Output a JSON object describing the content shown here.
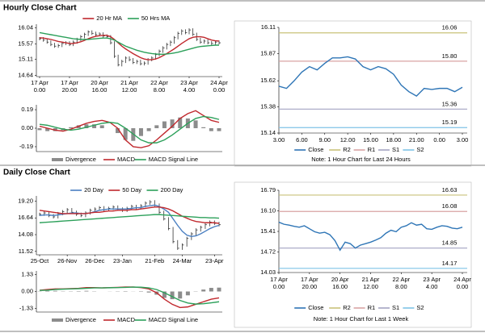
{
  "sections": [
    {
      "title": "Hourly Close Chart"
    },
    {
      "title": "Daily Close Chart"
    }
  ],
  "chart_data": [
    {
      "type": "price",
      "color": "#333333",
      "categories": [
        "17 Apr\n0.00",
        null,
        null,
        null,
        null,
        null,
        null,
        null,
        "17 Apr\n20.00",
        null,
        null,
        null,
        null,
        null,
        null,
        null,
        "20 Apr\n16.00",
        null,
        null,
        null,
        null,
        null,
        null,
        null,
        "21 Apr\n12.00",
        null,
        null,
        null,
        null,
        null,
        null,
        null,
        "22 Apr\n8.00",
        null,
        null,
        null,
        null,
        null,
        null,
        null,
        "23 Apr\n4.00",
        null,
        null,
        null,
        null,
        null,
        null,
        null,
        "24 Apr\n0.00"
      ],
      "values": [
        15.72,
        15.68,
        15.62,
        15.55,
        15.5,
        15.52,
        15.58,
        15.6,
        15.55,
        15.62,
        15.7,
        15.78,
        15.85,
        15.92,
        15.88,
        15.84,
        15.86,
        15.8,
        15.78,
        15.6,
        15.2,
        14.95,
        15.05,
        15.15,
        15.1,
        15.02,
        15.05,
        14.98,
        15.0,
        15.1,
        15.15,
        15.25,
        15.35,
        15.45,
        15.55,
        15.62,
        15.75,
        15.88,
        15.95,
        15.9,
        15.98,
        15.85,
        15.7,
        15.62,
        15.65,
        15.6,
        15.58,
        15.62,
        15.6
      ],
      "series": [
        {
          "name": "20 Hr MA",
          "color": "#c0282d",
          "values": [
            15.75,
            15.74,
            15.72,
            15.7,
            15.67,
            15.64,
            15.62,
            15.6,
            15.58,
            15.58,
            15.6,
            15.63,
            15.67,
            15.72,
            15.76,
            15.79,
            15.81,
            15.82,
            15.82,
            15.78,
            15.7,
            15.6,
            15.5,
            15.42,
            15.35,
            15.28,
            15.22,
            15.16,
            15.12,
            15.1,
            15.1,
            15.12,
            15.16,
            15.22,
            15.28,
            15.35,
            15.42,
            15.5,
            15.58,
            15.65,
            15.72,
            15.76,
            15.78,
            15.78,
            15.76,
            15.72,
            15.68,
            15.66,
            15.65
          ]
        },
        {
          "name": "50 Hrs MA",
          "color": "#2ca05a",
          "values": [
            15.9,
            15.88,
            15.86,
            15.84,
            15.82,
            15.8,
            15.78,
            15.76,
            15.74,
            15.72,
            15.71,
            15.7,
            15.7,
            15.7,
            15.71,
            15.72,
            15.73,
            15.74,
            15.74,
            15.72,
            15.68,
            15.62,
            15.56,
            15.5,
            15.46,
            15.42,
            15.38,
            15.35,
            15.32,
            15.3,
            15.28,
            15.27,
            15.26,
            15.26,
            15.27,
            15.28,
            15.3,
            15.32,
            15.35,
            15.38,
            15.41,
            15.44,
            15.47,
            15.49,
            15.5,
            15.51,
            15.52,
            15.53,
            15.53
          ]
        }
      ],
      "ylim": [
        14.6,
        16.15
      ],
      "yticks": [
        16.04,
        15.57,
        15.11,
        14.64
      ]
    },
    {
      "type": "macd",
      "series": [
        {
          "name": "Divergence",
          "kind": "bar",
          "color": "#8c8c8c",
          "values": [
            -0.02,
            -0.03,
            -0.03,
            -0.02,
            0.01,
            0.03,
            0.04,
            0.04,
            0.03,
            0.0,
            -0.05,
            -0.12,
            -0.13,
            -0.08,
            -0.03,
            0.03,
            0.07,
            0.09,
            0.11,
            0.1,
            0.08,
            0.01,
            -0.03,
            -0.03
          ]
        },
        {
          "name": "MACD",
          "kind": "line",
          "color": "#c0282d",
          "values": [
            0.02,
            0.0,
            -0.02,
            -0.03,
            -0.01,
            0.02,
            0.05,
            0.07,
            0.08,
            0.06,
            0.0,
            -0.12,
            -0.19,
            -0.2,
            -0.18,
            -0.12,
            -0.05,
            0.02,
            0.1,
            0.15,
            0.18,
            0.13,
            0.08,
            0.06
          ]
        },
        {
          "name": "MACD Signal Line",
          "kind": "line",
          "color": "#2ca05a",
          "values": [
            0.04,
            0.03,
            0.01,
            -0.01,
            -0.02,
            -0.01,
            0.01,
            0.03,
            0.05,
            0.06,
            0.05,
            0.0,
            -0.06,
            -0.12,
            -0.15,
            -0.15,
            -0.12,
            -0.07,
            -0.01,
            0.05,
            0.1,
            0.12,
            0.11,
            0.09
          ]
        }
      ],
      "ylim": [
        -0.24,
        0.24
      ],
      "yticks": [
        0.19,
        {
          "value": 0,
          "label": "0.00"
        },
        -0.19
      ]
    },
    {
      "type": "line",
      "note": "Note: 1 Hour Chart for Last 24 Hours",
      "categories": [
        "3.00",
        null,
        null,
        "6.00",
        null,
        null,
        "9.00",
        null,
        null,
        "12.00",
        null,
        null,
        "15.00",
        null,
        null,
        "18.00",
        null,
        null,
        "21.00",
        null,
        null,
        "0.00",
        null,
        null,
        "3.00"
      ],
      "series": [
        {
          "name": "Close",
          "color": "#2e75b6",
          "values": [
            15.57,
            15.55,
            15.62,
            15.7,
            15.75,
            15.72,
            15.78,
            15.83,
            15.83,
            15.84,
            15.82,
            15.75,
            15.72,
            15.75,
            15.73,
            15.68,
            15.58,
            15.52,
            15.48,
            15.55,
            15.54,
            15.55,
            15.55,
            15.52,
            15.56
          ]
        }
      ],
      "levels": [
        {
          "name": "R2",
          "value": 16.06,
          "color": "#c9c27a"
        },
        {
          "name": "R1",
          "value": 15.8,
          "label": "15.80",
          "color": "#d8a3a3"
        },
        {
          "name": "S1",
          "value": 15.36,
          "color": "#a3a3c2"
        },
        {
          "name": "S2",
          "value": 15.19,
          "color": "#7fc3e6"
        }
      ],
      "ylim": [
        15.14,
        16.11
      ],
      "yticks": [
        16.11,
        15.87,
        15.62,
        15.38,
        15.14
      ]
    },
    {
      "type": "price",
      "color": "#333333",
      "categories": [
        "25-Oct",
        null,
        null,
        null,
        null,
        null,
        "26-Nov",
        null,
        null,
        null,
        null,
        null,
        "26-Dec",
        null,
        null,
        null,
        null,
        null,
        "23-Jan",
        null,
        null,
        null,
        null,
        null,
        null,
        "21-Feb",
        null,
        null,
        null,
        null,
        null,
        "24-Mar",
        null,
        null,
        null,
        null,
        null,
        null,
        "23-Apr",
        null
      ],
      "values": [
        17.2,
        17.4,
        17.0,
        16.8,
        17.3,
        17.6,
        17.9,
        17.5,
        17.2,
        17.0,
        17.4,
        17.8,
        18.0,
        18.2,
        17.9,
        18.1,
        18.3,
        18.0,
        17.8,
        18.1,
        18.4,
        18.2,
        18.5,
        18.9,
        19.1,
        18.6,
        17.5,
        16.5,
        15.0,
        13.0,
        12.0,
        12.5,
        13.5,
        14.2,
        14.8,
        15.2,
        15.6,
        16.0,
        15.8,
        15.6
      ],
      "series": [
        {
          "name": "20 Day",
          "color": "#4a7fc1",
          "values": [
            17.0,
            17.1,
            17.1,
            17.0,
            17.1,
            17.2,
            17.3,
            17.4,
            17.4,
            17.3,
            17.3,
            17.4,
            17.6,
            17.8,
            17.9,
            18.0,
            18.0,
            18.0,
            18.0,
            18.0,
            18.1,
            18.2,
            18.2,
            18.4,
            18.5,
            18.6,
            18.4,
            18.0,
            17.5,
            16.5,
            15.5,
            14.6,
            14.0,
            13.8,
            13.9,
            14.2,
            14.6,
            15.0,
            15.3,
            15.5
          ]
        },
        {
          "name": "50 Day",
          "color": "#c0282d",
          "values": [
            17.8,
            17.7,
            17.6,
            17.5,
            17.4,
            17.3,
            17.3,
            17.3,
            17.3,
            17.3,
            17.3,
            17.4,
            17.5,
            17.5,
            17.6,
            17.7,
            17.7,
            17.8,
            17.8,
            17.8,
            17.9,
            17.9,
            18.0,
            18.1,
            18.2,
            18.3,
            18.3,
            18.2,
            18.0,
            17.7,
            17.3,
            16.9,
            16.6,
            16.3,
            16.1,
            16.0,
            15.9,
            15.9,
            15.9,
            15.8
          ]
        },
        {
          "name": "200 Day",
          "color": "#2ca05a",
          "values": [
            15.9,
            15.95,
            16.0,
            16.05,
            16.1,
            16.15,
            16.2,
            16.25,
            16.3,
            16.35,
            16.4,
            16.45,
            16.5,
            16.55,
            16.6,
            16.65,
            16.7,
            16.75,
            16.8,
            16.85,
            16.9,
            16.95,
            17.0,
            17.05,
            17.1,
            17.15,
            17.15,
            17.1,
            17.05,
            17.0,
            16.95,
            16.9,
            16.85,
            16.8,
            16.75,
            16.7,
            16.7,
            16.65,
            16.65,
            16.6
          ]
        }
      ],
      "ylim": [
        11.0,
        20.0
      ],
      "yticks": [
        {
          "value": 19.2,
          "label": "19.20"
        },
        16.64,
        14.08,
        11.52
      ]
    },
    {
      "type": "macd",
      "series": [
        {
          "name": "Divergence",
          "kind": "bar",
          "color": "#8c8c8c",
          "values": [
            0.02,
            0.05,
            0.05,
            0.02,
            0.02,
            0.03,
            0.05,
            0.02,
            0.0,
            0.01,
            0.02,
            0.03,
            0.01,
            -0.03,
            -0.08,
            -0.25,
            -0.5,
            -0.6,
            -0.55,
            -0.3,
            -0.02,
            0.15,
            0.28,
            0.3
          ]
        },
        {
          "name": "MACD",
          "kind": "line",
          "color": "#c0282d",
          "values": [
            0.1,
            0.15,
            0.2,
            0.2,
            0.22,
            0.25,
            0.3,
            0.3,
            0.28,
            0.3,
            0.32,
            0.35,
            0.35,
            0.3,
            0.2,
            -0.1,
            -0.6,
            -1.0,
            -1.25,
            -1.2,
            -1.0,
            -0.8,
            -0.6,
            -0.5
          ]
        },
        {
          "name": "MACD Signal Line",
          "kind": "line",
          "color": "#2ca05a",
          "values": [
            0.08,
            0.1,
            0.15,
            0.18,
            0.2,
            0.22,
            0.25,
            0.28,
            0.28,
            0.29,
            0.3,
            0.32,
            0.34,
            0.33,
            0.28,
            0.15,
            -0.1,
            -0.4,
            -0.7,
            -0.9,
            -0.98,
            -0.95,
            -0.88,
            -0.8
          ]
        }
      ],
      "ylim": [
        -1.6,
        1.6
      ],
      "yticks": [
        1.33,
        {
          "value": 0,
          "label": "0.00"
        },
        -1.33
      ]
    },
    {
      "type": "line",
      "note": "Note: 1 Hour Chart for Last 1 Week",
      "categories": [
        "17 Apr\n0.00",
        null,
        null,
        null,
        null,
        null,
        "17 Apr\n20.00",
        null,
        null,
        null,
        null,
        null,
        "20 Apr\n16.00",
        null,
        null,
        null,
        null,
        null,
        "21 Apr\n12.00",
        null,
        null,
        null,
        null,
        null,
        "22 Apr\n8.00",
        null,
        null,
        null,
        null,
        null,
        "23 Apr\n4.00",
        null,
        null,
        null,
        null,
        null,
        "24 Apr\n0.00"
      ],
      "series": [
        {
          "name": "Close",
          "color": "#2e75b6",
          "values": [
            15.72,
            15.65,
            15.62,
            15.58,
            15.55,
            15.6,
            15.5,
            15.4,
            15.35,
            15.38,
            15.3,
            15.1,
            14.78,
            15.05,
            15.0,
            14.85,
            14.95,
            15.0,
            15.05,
            15.12,
            15.2,
            15.35,
            15.45,
            15.4,
            15.55,
            15.6,
            15.7,
            15.62,
            15.65,
            15.5,
            15.48,
            15.55,
            15.6,
            15.58,
            15.52,
            15.5,
            15.55
          ]
        }
      ],
      "levels": [
        {
          "name": "R2",
          "value": 16.63,
          "color": "#c9c27a"
        },
        {
          "name": "R1",
          "value": 16.08,
          "color": "#d8a3a3"
        },
        {
          "name": "S1",
          "value": 14.85,
          "color": "#a3a3c2"
        },
        {
          "name": "S2",
          "value": 14.17,
          "color": "#7fc3e6"
        }
      ],
      "ylim": [
        14.03,
        16.79
      ],
      "yticks": [
        16.79,
        {
          "value": 16.1,
          "label": "16.10"
        },
        15.41,
        14.72,
        14.03
      ]
    }
  ]
}
